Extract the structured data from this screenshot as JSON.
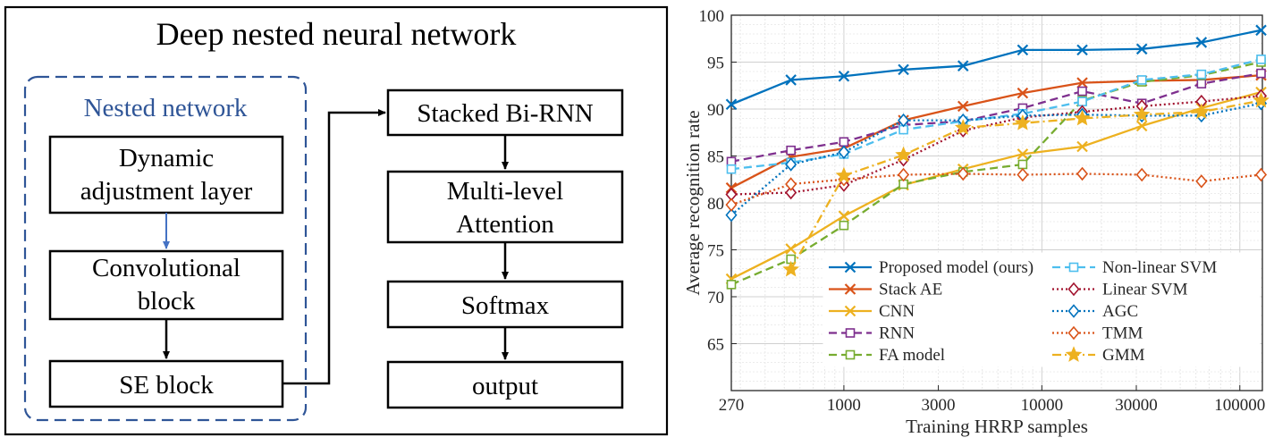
{
  "diagram": {
    "title": "Deep nested neural network",
    "nested_label": "Nested network",
    "boxes": {
      "dynamic": [
        "Dynamic",
        "adjustment layer"
      ],
      "conv": [
        "Convolutional",
        "block"
      ],
      "se": [
        "SE block"
      ],
      "birnn": [
        "Stacked Bi-RNN"
      ],
      "attention": [
        "Multi-level",
        "Attention"
      ],
      "softmax": [
        "Softmax"
      ],
      "output": [
        "output"
      ]
    },
    "colors": {
      "nested": "#2F5597",
      "arrow_blue": "#4472C4",
      "ink": "#000000"
    }
  },
  "chart_data": {
    "type": "line",
    "xlabel": "Training HRRP samples",
    "ylabel": "Average recognition rate",
    "xscale": "log",
    "xlim": [
      270,
      130000
    ],
    "ylim": [
      60,
      100
    ],
    "xticks": [
      270,
      1000,
      3000,
      10000,
      30000,
      100000
    ],
    "yticks": [
      65,
      70,
      75,
      80,
      85,
      90,
      95,
      100
    ],
    "grid": true,
    "legend_position": "bottom-right",
    "x": [
      270,
      540,
      1000,
      2000,
      4000,
      8000,
      16000,
      32000,
      64000,
      128000
    ],
    "series": [
      {
        "name": "Proposed model (ours)",
        "color": "#0072BD",
        "marker": "x",
        "dash": "solid",
        "values": [
          90.5,
          93.1,
          93.5,
          94.2,
          94.6,
          96.3,
          96.3,
          96.4,
          97.1,
          98.4
        ]
      },
      {
        "name": "Stack AE",
        "color": "#D95319",
        "marker": "x",
        "dash": "solid",
        "values": [
          81.6,
          84.9,
          85.8,
          88.8,
          90.3,
          91.7,
          92.8,
          93.0,
          93.1,
          93.6
        ]
      },
      {
        "name": "CNN",
        "color": "#EDB120",
        "marker": "x",
        "dash": "solid",
        "values": [
          71.9,
          75.1,
          78.6,
          81.9,
          83.6,
          85.2,
          86.0,
          88.2,
          90.1,
          91.8
        ]
      },
      {
        "name": "RNN",
        "color": "#7E2F8E",
        "marker": "square",
        "dash": "dash",
        "values": [
          84.4,
          85.6,
          86.5,
          88.3,
          88.7,
          90.1,
          91.9,
          90.6,
          92.7,
          93.8
        ]
      },
      {
        "name": "FA model",
        "color": "#77AC30",
        "marker": "square",
        "dash": "dash",
        "values": [
          71.3,
          74.0,
          77.6,
          82.0,
          83.3,
          84.1,
          90.9,
          92.9,
          93.6,
          95.0
        ]
      },
      {
        "name": "Non-linear SVM",
        "color": "#4DBEEE",
        "marker": "square",
        "dash": "dash",
        "values": [
          83.6,
          84.3,
          85.2,
          87.8,
          88.7,
          89.5,
          90.8,
          93.1,
          93.7,
          95.3
        ]
      },
      {
        "name": "Linear SVM",
        "color": "#A2142F",
        "marker": "diamond",
        "dash": "dot",
        "values": [
          80.9,
          81.1,
          81.9,
          84.6,
          87.7,
          89.1,
          89.7,
          90.3,
          90.8,
          91.4
        ]
      },
      {
        "name": "AGC",
        "color": "#0072BD",
        "marker": "diamond",
        "dash": "dot",
        "values": [
          78.7,
          84.1,
          85.4,
          88.8,
          88.8,
          89.3,
          89.4,
          89.3,
          89.3,
          90.6
        ]
      },
      {
        "name": "TMM",
        "color": "#D95319",
        "marker": "diamond",
        "dash": "dot",
        "values": [
          79.8,
          82.0,
          82.5,
          83.0,
          83.1,
          83.0,
          83.1,
          83.0,
          82.3,
          83.0
        ]
      },
      {
        "name": "GMM",
        "color": "#EDB120",
        "marker": "star",
        "dash": "dashdot",
        "values": [
          null,
          72.9,
          82.9,
          85.1,
          88.0,
          88.5,
          89.0,
          89.4,
          89.7,
          90.9
        ]
      }
    ]
  }
}
